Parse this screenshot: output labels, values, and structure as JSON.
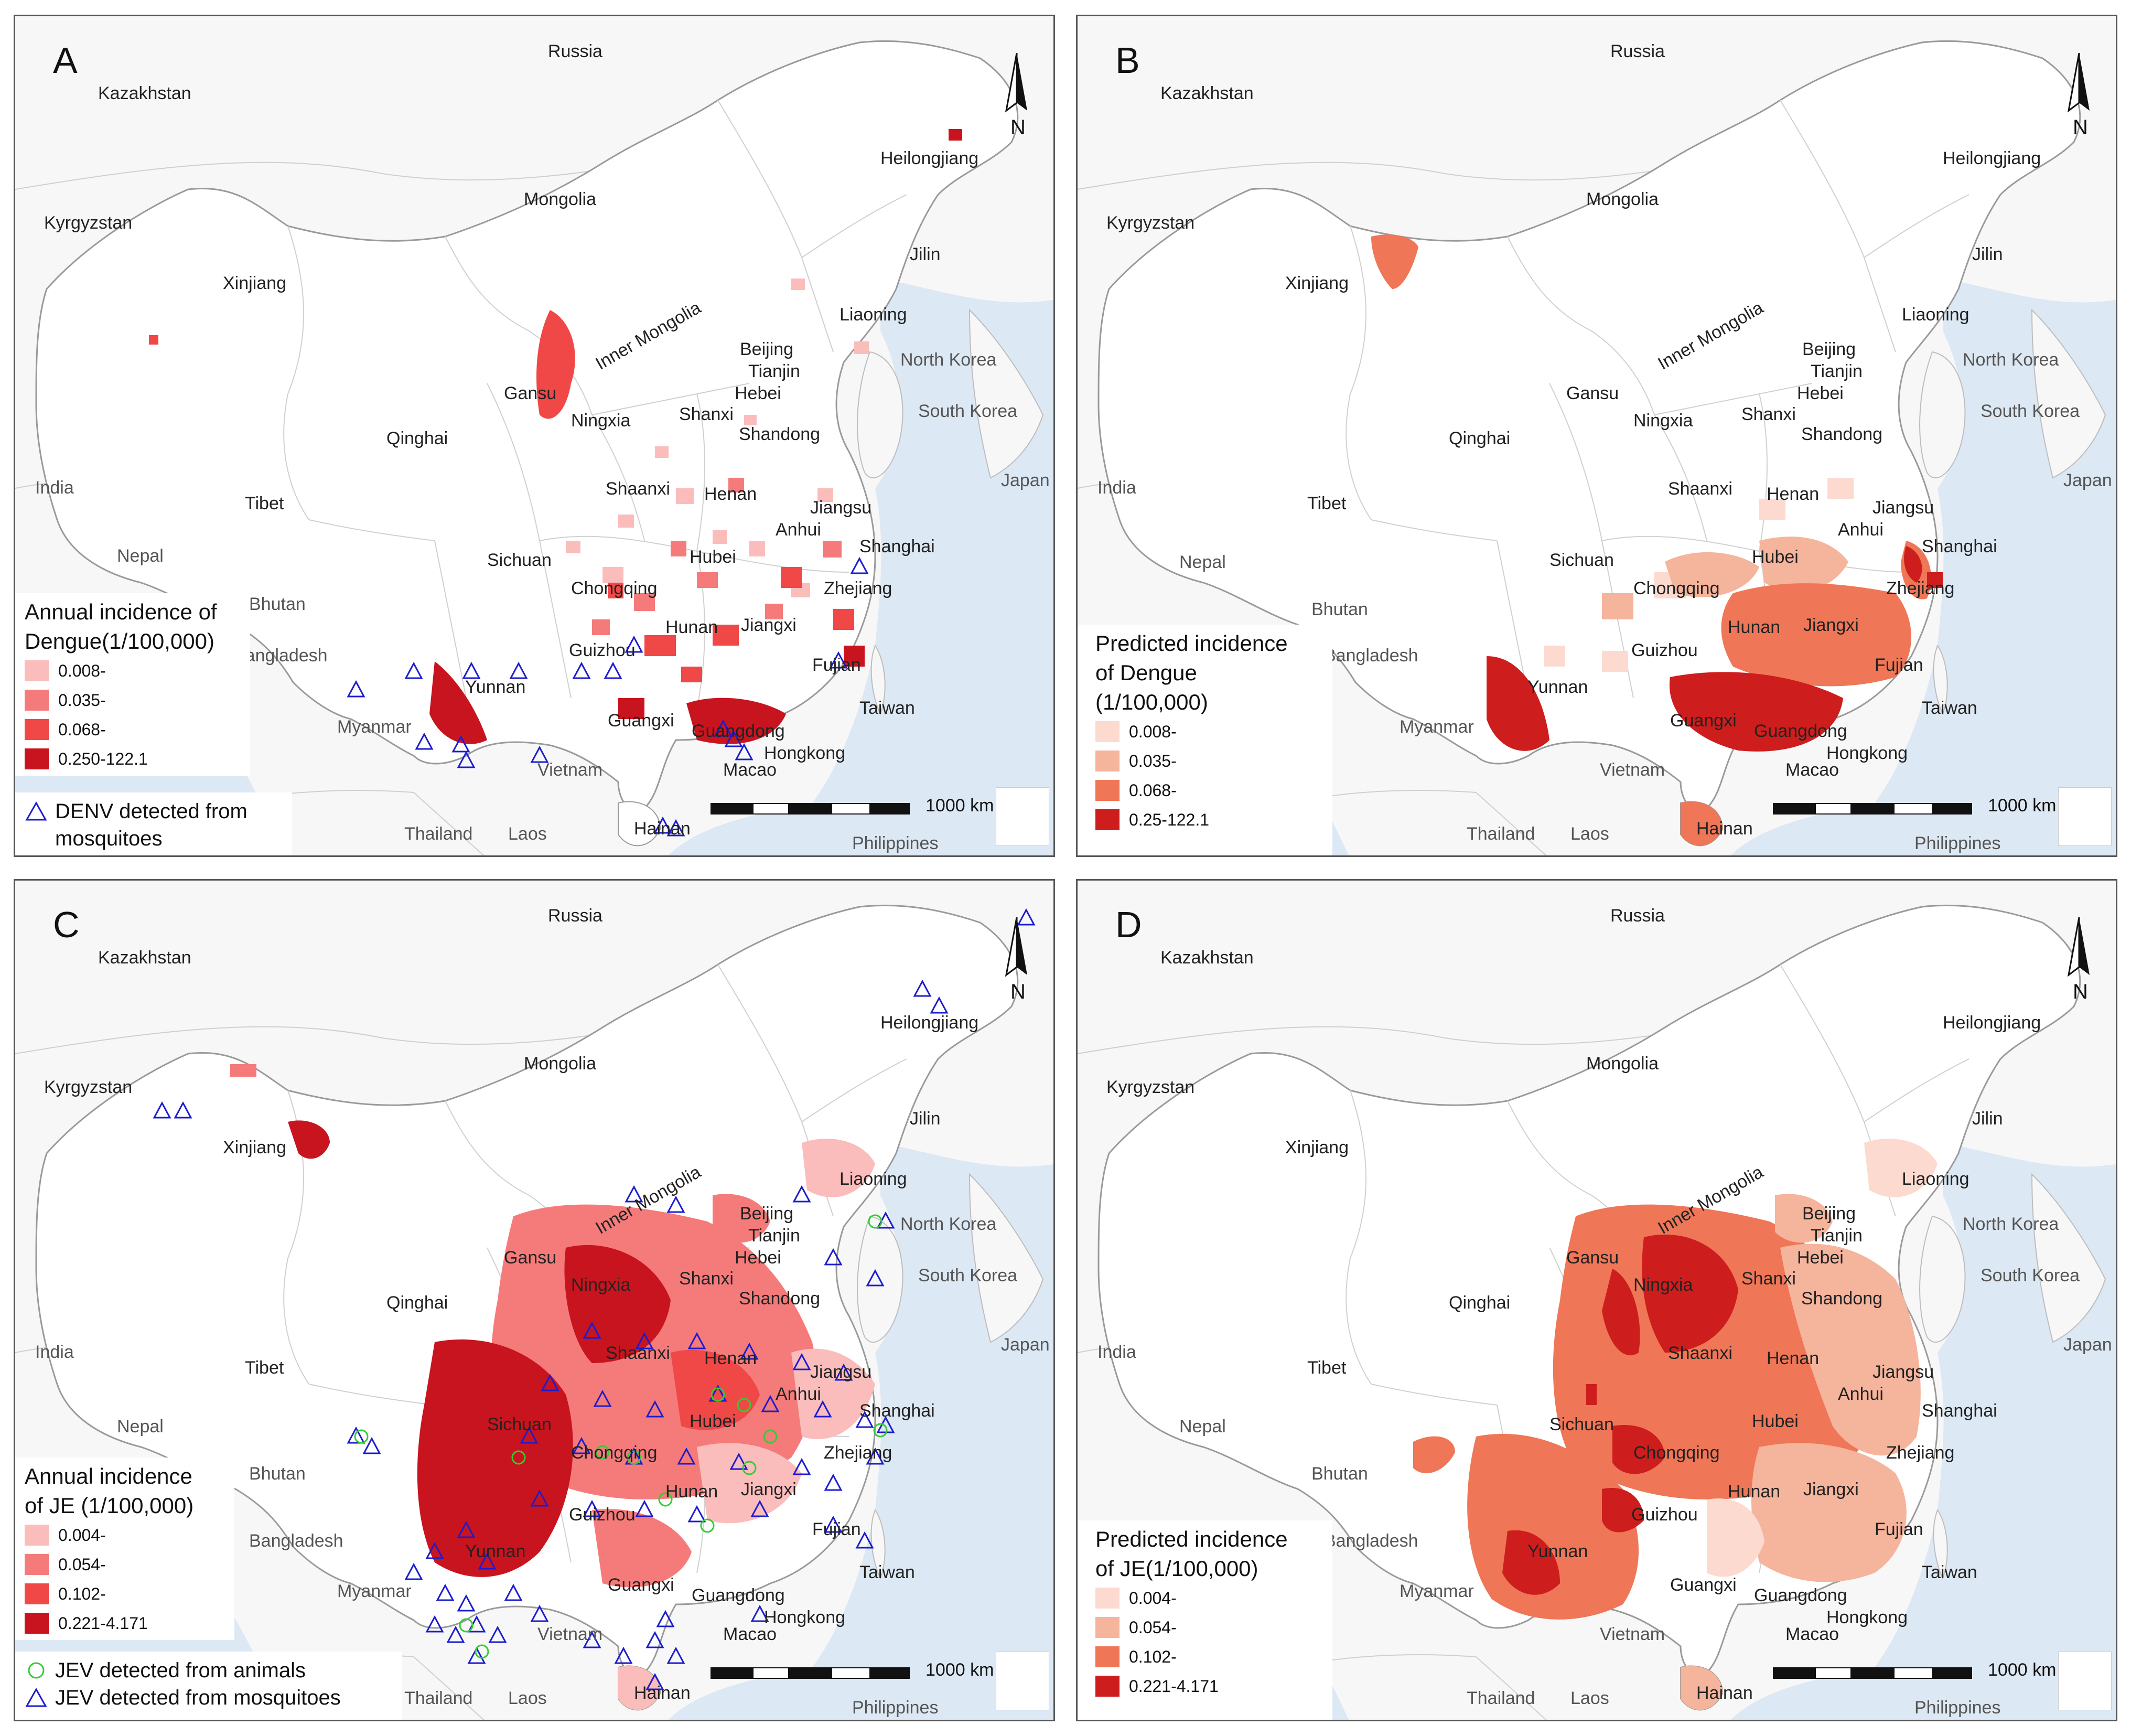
{
  "colors": {
    "sea": "#dce8f3",
    "land": "#f7f7f7",
    "border": "#bdbdbd",
    "china_fill": "#ffffff",
    "mosquito_marker": "#1c1ccf",
    "animal_marker": "#33cc33",
    "obs_classes": [
      "#fbbcbc",
      "#f57b7b",
      "#f04747",
      "#c8141e"
    ],
    "pred_classes": [
      "#fcdad0",
      "#f5b49c",
      "#ef7656",
      "#cd1d1d"
    ]
  },
  "scale_bar": {
    "label": "1000 km"
  },
  "north_arrow": {
    "label": "N"
  },
  "place_labels": {
    "russia": "Russia",
    "kazakhstan": "Kazakhstan",
    "mongolia": "Mongolia",
    "kyrgyzstan": "Kyrgyzstan",
    "xinjiang": "Xinjiang",
    "inner_mongolia": "Inner Mongolia",
    "heilongjiang": "Heilongjiang",
    "jilin": "Jilin",
    "liaoning": "Liaoning",
    "north_korea": "North Korea",
    "south_korea": "South Korea",
    "japan": "Japan",
    "beijing": "Beijing",
    "tianjin": "Tianjin",
    "hebei": "Hebei",
    "shanxi": "Shanxi",
    "shandong": "Shandong",
    "gansu": "Gansu",
    "ningxia": "Ningxia",
    "qinghai": "Qinghai",
    "india": "India",
    "tibet": "Tibet",
    "nepal": "Nepal",
    "bhutan": "Bhutan",
    "bangladesh": "Bangladesh",
    "myanmar": "Myanmar",
    "shaanxi": "Shaanxi",
    "henan": "Henan",
    "jiangsu": "Jiangsu",
    "anhui": "Anhui",
    "shanghai": "Shanghai",
    "hubei": "Hubei",
    "sichuan": "Sichuan",
    "chongqing": "Chongqing",
    "zhejiang": "Zhejiang",
    "hunan": "Hunan",
    "jiangxi": "Jiangxi",
    "guizhou": "Guizhou",
    "fujian": "Fujian",
    "yunnan": "Yunnan",
    "taiwan": "Taiwan",
    "guangxi": "Guangxi",
    "guangdong": "Guangdong",
    "hongkong": "Hongkong",
    "macao": "Macao",
    "vietnam": "Vietnam",
    "thailand": "Thailand",
    "laos": "Laos",
    "hainan": "Hainan",
    "philippines": "Philippines"
  },
  "panels": [
    {
      "letter": "A",
      "legend_title": [
        "Annual incidence of",
        "Dengue(1/100,000)"
      ],
      "classes": [
        "0.008-",
        "0.035-",
        "0.068-",
        "0.250-122.1"
      ],
      "markers": [
        "DENV detected from",
        "mosquitoes"
      ]
    },
    {
      "letter": "B",
      "legend_title": [
        "Predicted incidence",
        "of Dengue",
        "(1/100,000)"
      ],
      "classes": [
        "0.008-",
        "0.035-",
        "0.068-",
        "0.25-122.1"
      ]
    },
    {
      "letter": "C",
      "legend_title": [
        "Annual incidence",
        "of JE (1/100,000)"
      ],
      "classes": [
        "0.004-",
        "0.054-",
        "0.102-",
        "0.221-4.171"
      ],
      "markers": [
        "JEV detected from animals",
        "JEV detected from mosquitoes"
      ]
    },
    {
      "letter": "D",
      "legend_title": [
        "Predicted incidence",
        "of JE(1/100,000)"
      ],
      "classes": [
        "0.004-",
        "0.054-",
        "0.102-",
        "0.221-4.171"
      ]
    }
  ]
}
